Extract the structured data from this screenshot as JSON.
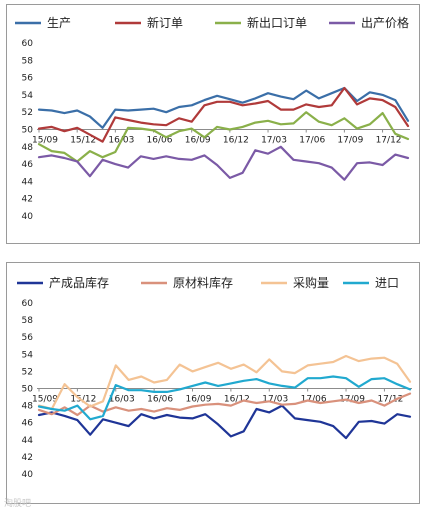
{
  "chart_data": [
    {
      "type": "line",
      "x_ticks": [
        "15/09",
        "15/12",
        "16/03",
        "16/06",
        "16/09",
        "16/12",
        "17/03",
        "17/06",
        "17/09",
        "17/12"
      ],
      "ylim": [
        40,
        60
      ],
      "y_ticks": [
        40,
        42,
        44,
        46,
        48,
        50,
        52,
        54,
        56,
        58,
        60
      ],
      "baseline": 50,
      "legend_position": "top",
      "series": [
        {
          "name": "生产",
          "color": "#3b6fa8",
          "values": [
            52.3,
            52.2,
            51.9,
            52.2,
            51.5,
            50.2,
            52.3,
            52.2,
            52.3,
            52.4,
            52.0,
            52.6,
            52.8,
            53.4,
            53.9,
            53.5,
            53.1,
            53.6,
            54.2,
            53.8,
            53.5,
            54.5,
            53.6,
            54.2,
            54.8,
            53.3,
            54.3,
            54.0,
            53.4,
            51.0
          ]
        },
        {
          "name": "新订单",
          "color": "#b03a3a",
          "values": [
            50.1,
            50.3,
            49.8,
            50.2,
            49.4,
            48.6,
            51.4,
            51.1,
            50.8,
            50.6,
            50.5,
            51.3,
            50.9,
            52.8,
            53.2,
            53.2,
            52.8,
            53.0,
            53.3,
            52.3,
            52.3,
            52.9,
            52.6,
            52.8,
            54.8,
            52.9,
            53.6,
            53.4,
            52.6,
            50.4
          ]
        },
        {
          "name": "新出口订单",
          "color": "#8ab04a",
          "values": [
            48.3,
            47.5,
            47.3,
            46.3,
            47.5,
            46.8,
            47.4,
            50.2,
            50.1,
            49.9,
            49.1,
            49.8,
            50.1,
            49.1,
            50.3,
            50.0,
            50.3,
            50.8,
            51.0,
            50.6,
            50.7,
            52.0,
            50.9,
            50.5,
            51.3,
            50.1,
            50.6,
            51.9,
            49.5,
            48.9
          ]
        },
        {
          "name": "出产价格",
          "color": "#7b5aa6",
          "values": [
            46.8,
            47.0,
            46.7,
            46.3,
            44.6,
            46.5,
            46.0,
            45.6,
            46.9,
            46.6,
            46.9,
            46.6,
            46.5,
            47.0,
            45.9,
            44.4,
            45.0,
            47.6,
            47.2,
            48.0,
            46.5,
            46.3,
            46.1,
            45.6,
            44.2,
            46.1,
            46.2,
            45.9,
            47.1,
            46.7
          ]
        }
      ]
    },
    {
      "type": "line",
      "x_ticks": [
        "15/09",
        "15/12",
        "16/03",
        "16/06",
        "16/09",
        "16/12",
        "17/03",
        "17/06",
        "17/09",
        "17/12"
      ],
      "ylim": [
        40,
        60
      ],
      "y_ticks": [
        40,
        42,
        44,
        46,
        48,
        50,
        52,
        54,
        56,
        58,
        60
      ],
      "baseline": 50,
      "legend_position": "top",
      "series": [
        {
          "name": "产成品库存",
          "color": "#1f3597",
          "values": [
            46.9,
            47.2,
            46.8,
            46.3,
            44.6,
            46.4,
            46.0,
            45.6,
            47.0,
            46.5,
            46.9,
            46.6,
            46.5,
            47.0,
            45.8,
            44.4,
            45.0,
            47.6,
            47.2,
            48.0,
            46.5,
            46.3,
            46.1,
            45.6,
            44.2,
            46.1,
            46.2,
            45.9,
            47.0,
            46.7
          ]
        },
        {
          "name": "原材料库存",
          "color": "#d9917c",
          "values": [
            47.5,
            47.0,
            47.8,
            46.9,
            48.0,
            47.3,
            47.8,
            47.4,
            47.6,
            47.3,
            47.7,
            47.5,
            47.9,
            48.1,
            48.2,
            48.0,
            48.6,
            48.3,
            48.5,
            48.1,
            48.2,
            48.6,
            48.3,
            48.5,
            48.7,
            48.3,
            48.6,
            48.0,
            48.8,
            49.4
          ]
        },
        {
          "name": "采购量",
          "color": "#f4c394",
          "values": [
            48.0,
            47.6,
            50.5,
            49.0,
            47.9,
            48.5,
            52.7,
            51.0,
            51.4,
            50.7,
            51.0,
            52.8,
            52.0,
            52.5,
            53.0,
            52.3,
            52.8,
            51.9,
            53.4,
            52.0,
            51.8,
            52.7,
            52.9,
            53.1,
            53.8,
            53.2,
            53.5,
            53.6,
            52.9,
            50.8
          ]
        },
        {
          "name": "进口",
          "color": "#21a9cf",
          "values": [
            47.9,
            47.6,
            47.4,
            48.0,
            46.4,
            46.8,
            50.4,
            49.8,
            49.8,
            49.6,
            49.6,
            49.9,
            50.3,
            50.7,
            50.3,
            50.6,
            50.9,
            51.1,
            50.6,
            50.3,
            50.1,
            51.2,
            51.2,
            51.4,
            51.2,
            50.2,
            51.1,
            51.2,
            50.5,
            49.9
          ]
        }
      ]
    }
  ],
  "watermark": "淘股吧"
}
